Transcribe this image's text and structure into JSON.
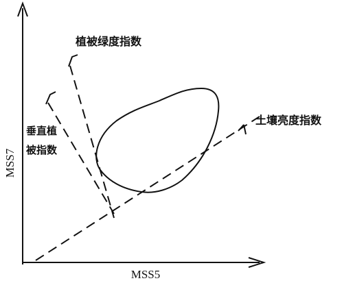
{
  "axes": {
    "x_label": "MSS5",
    "y_label": "MSS7"
  },
  "labels": {
    "greenness_index": "植被绿度指数",
    "perpendicular_index_line1": "垂直植",
    "perpendicular_index_line2": "被指数",
    "soil_brightness_index": "土壤亮度指数"
  },
  "colors": {
    "ink": "#111111",
    "background": "#ffffff"
  }
}
